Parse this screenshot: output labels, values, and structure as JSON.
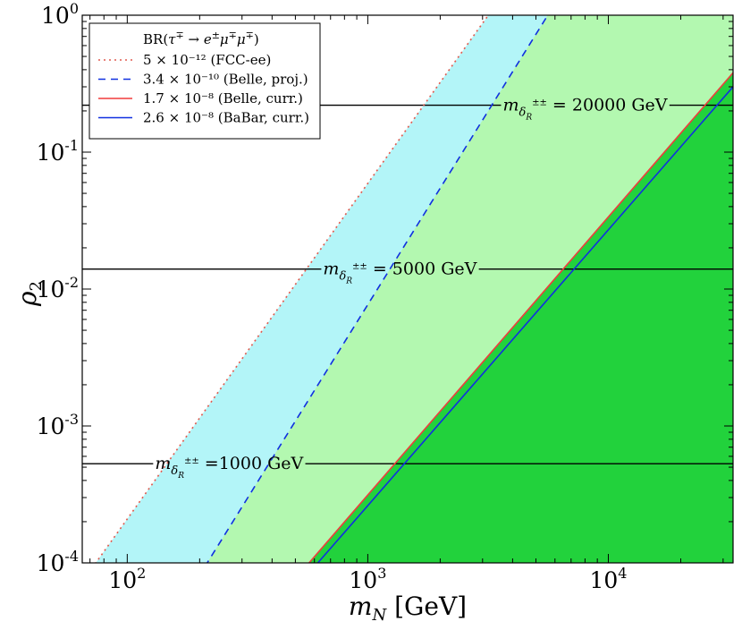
{
  "chart_data": {
    "type": "line",
    "xscale": "log",
    "yscale": "log",
    "xlabel": "m_N [GeV]",
    "ylabel": "ρ₂",
    "xlim": [
      65,
      33000
    ],
    "ylim": [
      0.0001,
      1
    ],
    "x_ticks": [
      {
        "value": 100,
        "base": "10",
        "exp": "2"
      },
      {
        "value": 1000,
        "base": "10",
        "exp": "3"
      },
      {
        "value": 10000,
        "base": "10",
        "exp": "4"
      }
    ],
    "y_ticks": [
      {
        "value": 0.0001,
        "base": "10",
        "exp": "-4"
      },
      {
        "value": 0.001,
        "base": "10",
        "exp": "-3"
      },
      {
        "value": 0.01,
        "base": "10",
        "exp": "-2"
      },
      {
        "value": 0.1,
        "base": "10",
        "exp": "-1"
      },
      {
        "value": 1,
        "base": "10",
        "exp": "0"
      }
    ],
    "legend": {
      "title": "BR(τ∓ → e±μ∓μ∓)",
      "placement": "top-left"
    },
    "series": [
      {
        "name": "5 × 10⁻¹² (FCC-ee)",
        "color": "#e05a4e",
        "style": "dotted",
        "fill": "#b3f5f8",
        "x": [
          74,
          3170
        ],
        "y": [
          0.0001,
          1
        ]
      },
      {
        "name": "3.4 × 10⁻¹⁰ (Belle, proj.)",
        "color": "#1030e0",
        "style": "dashed",
        "fill": "#b3f8b0",
        "x": [
          215,
          5600
        ],
        "y": [
          0.0001,
          1
        ]
      },
      {
        "name": "1.7 × 10⁻⁸ (Belle, curr.)",
        "color": "#f03c3c",
        "style": "solid",
        "fill": "#22d23c",
        "x": [
          570,
          33000
        ],
        "y": [
          0.0001,
          0.38
        ]
      },
      {
        "name": "2.6 × 10⁻⁸ (BaBar, curr.)",
        "color": "#1030e0",
        "style": "solid",
        "fill": null,
        "x": [
          620,
          33000
        ],
        "y": [
          0.0001,
          0.3
        ]
      }
    ],
    "horizontal_lines": [
      {
        "y": 0.22,
        "label": "= 20000 GeV",
        "label_x": 9500
      },
      {
        "y": 0.014,
        "label": "= 5000 GeV",
        "label_x": 1700
      },
      {
        "y": 0.00053,
        "label": "=1000 GeV",
        "label_x": 340
      }
    ],
    "hline_label_symbol": {
      "base": "m",
      "sub": "δ",
      "subsub": "R",
      "sup": "±±"
    }
  }
}
